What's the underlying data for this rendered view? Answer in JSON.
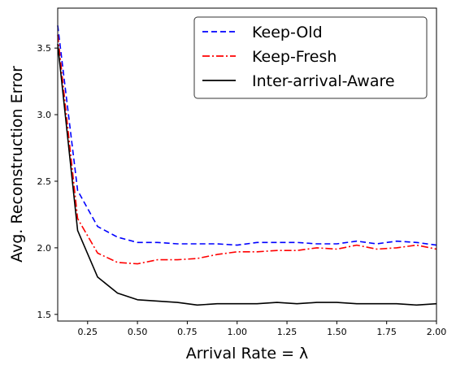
{
  "chart_data": {
    "type": "line",
    "title": "",
    "xlabel": "Arrival Rate = λ",
    "ylabel": "Avg. Reconstruction Error",
    "xlim": [
      0.1,
      2.0
    ],
    "ylim": [
      1.45,
      3.8
    ],
    "x_ticks": [
      "0.25",
      "0.50",
      "0.75",
      "1.00",
      "1.25",
      "1.50",
      "1.75",
      "2.00"
    ],
    "y_ticks": [
      "1.5",
      "2.0",
      "2.5",
      "3.0",
      "3.5"
    ],
    "grid": false,
    "legend_position": "top-right",
    "x": [
      0.1,
      0.2,
      0.3,
      0.4,
      0.5,
      0.6,
      0.7,
      0.8,
      0.9,
      1.0,
      1.1,
      1.2,
      1.3,
      1.4,
      1.5,
      1.6,
      1.7,
      1.8,
      1.9,
      2.0
    ],
    "series": [
      {
        "name": "Keep-Old",
        "color": "#0000ff",
        "style": "dashed",
        "values": [
          3.67,
          2.43,
          2.16,
          2.08,
          2.04,
          2.04,
          2.03,
          2.03,
          2.03,
          2.02,
          2.04,
          2.04,
          2.04,
          2.03,
          2.03,
          2.05,
          2.03,
          2.05,
          2.04,
          2.02
        ]
      },
      {
        "name": "Keep-Fresh",
        "color": "#ff0000",
        "style": "dashdot",
        "values": [
          3.6,
          2.22,
          1.96,
          1.89,
          1.88,
          1.91,
          1.91,
          1.92,
          1.95,
          1.97,
          1.97,
          1.98,
          1.98,
          2.0,
          1.99,
          2.02,
          1.99,
          2.0,
          2.02,
          1.99
        ]
      },
      {
        "name": "Inter-arrival-Aware",
        "color": "#000000",
        "style": "solid",
        "values": [
          3.53,
          2.13,
          1.78,
          1.66,
          1.61,
          1.6,
          1.59,
          1.57,
          1.58,
          1.58,
          1.58,
          1.59,
          1.58,
          1.59,
          1.59,
          1.58,
          1.58,
          1.58,
          1.57,
          1.58
        ]
      }
    ]
  }
}
